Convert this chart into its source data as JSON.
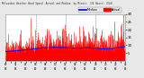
{
  "title_line1": "Milwaukee Weather Wind Speed",
  "title_line2": "Actual and Median",
  "title_line3": "by Minute",
  "title_line4": "(24 Hours) (Old)",
  "background_color": "#e8e8e8",
  "plot_background": "#ffffff",
  "bar_color": "#ff0000",
  "line_color": "#0000ff",
  "n_points": 1440,
  "y_min": 0,
  "y_max": 30,
  "ytick_values": [
    5,
    10,
    15,
    20,
    25,
    30
  ],
  "legend_actual_color": "#ff0000",
  "legend_median_color": "#0000ff",
  "legend_actual_label": "Actual",
  "legend_median_label": "Median",
  "vline_color": "#888888",
  "vline_positions": [
    0.25,
    0.5,
    0.75
  ],
  "seed": 12345
}
